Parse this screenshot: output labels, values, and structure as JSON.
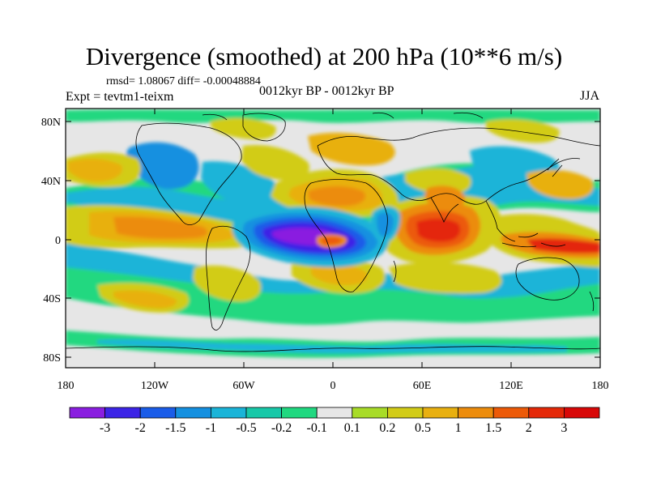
{
  "title": "Divergence (smoothed) at 200 hPa (10**6 m/s)",
  "stats": "rmsd= 1.08067  diff= -0.00048884",
  "experiment": "Expt = tevtm1-teixm",
  "period": "0012kyr BP - 0012kyr BP",
  "season": "JJA",
  "y_axis_ticks": [
    "80N",
    "40N",
    "0",
    "40S",
    "80S"
  ],
  "x_axis_ticks": [
    "180",
    "120W",
    "60W",
    "0",
    "60E",
    "120E",
    "180"
  ],
  "colorbar": {
    "labels": [
      "-3",
      "-2",
      "-1.5",
      "-1",
      "-0.5",
      "-0.2",
      "-0.1",
      "0.1",
      "0.2",
      "0.5",
      "1",
      "1.5",
      "2",
      "3"
    ],
    "colors": [
      "#8a1ee0",
      "#3c24e6",
      "#1a5ce8",
      "#1490e0",
      "#1ab4d8",
      "#18c8a8",
      "#20d880",
      "#e6e6e6",
      "#a8dc28",
      "#d2cc18",
      "#e8b010",
      "#ec8c0c",
      "#ec5a08",
      "#e42808",
      "#d80808"
    ]
  },
  "map_features": {
    "background_color": "#e6e6e6",
    "coastline_color": "#000000",
    "regions": [
      {
        "name": "atlantic-equatorial-convergence",
        "sign": "negative",
        "strength": "-3"
      },
      {
        "name": "west-africa-divergence",
        "sign": "positive",
        "strength": "1.5"
      },
      {
        "name": "indian-ocean-divergence",
        "sign": "positive",
        "strength": "3"
      },
      {
        "name": "east-pacific-divergence",
        "sign": "positive",
        "strength": "1.5"
      },
      {
        "name": "maritime-continent-divergence",
        "sign": "positive",
        "strength": "2"
      }
    ]
  }
}
